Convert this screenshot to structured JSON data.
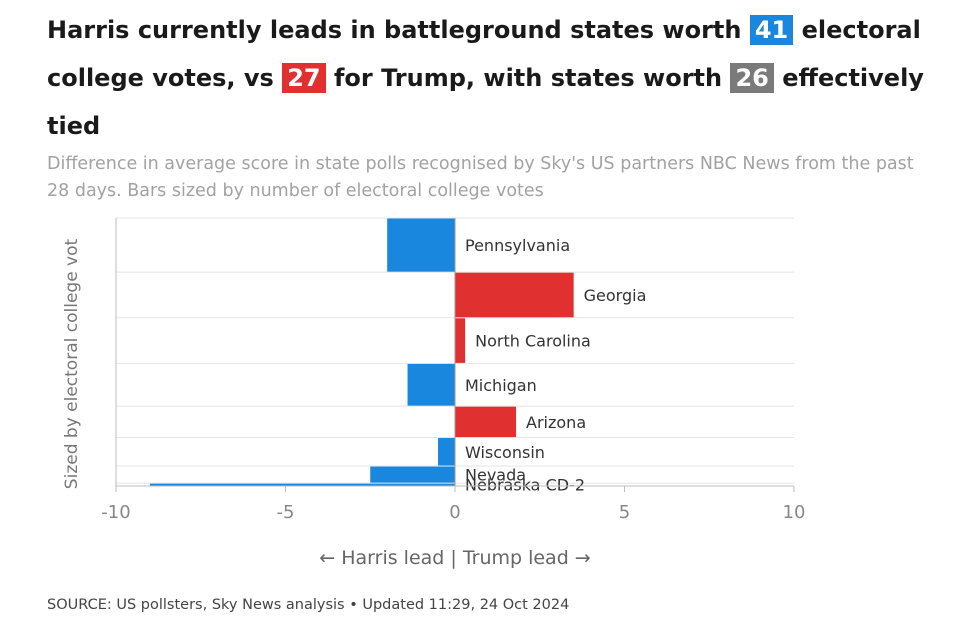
{
  "headline": {
    "part1": "Harris currently leads in battleground states worth",
    "harris_votes": "41",
    "part2": "electoral college votes, vs",
    "trump_votes": "27",
    "part3": "for Trump, with states worth",
    "tied_votes": "26",
    "part4": "effectively tied"
  },
  "subtitle": "Difference in average score in state polls recognised by Sky's US partners NBC News from the past 28 days. Bars sized by number of electoral college votes",
  "footer": {
    "source": "SOURCE: US pollsters, Sky News analysis • Updated 11:29, 24 Oct 2024"
  },
  "colors": {
    "harris": "#1a87de",
    "trump": "#e03030",
    "tied": "#7a7a7a"
  },
  "chart_data": {
    "type": "bar",
    "orientation": "horizontal",
    "title": "",
    "xlabel": "← Harris lead | Trump lead →",
    "ylabel": "Sized by electoral college vot",
    "xlim": [
      -10,
      10
    ],
    "xticks": [
      -10,
      -5,
      0,
      5,
      10
    ],
    "xtick_labels": [
      "-10",
      "-5",
      "0",
      "5",
      "10"
    ],
    "bar_width_encodes": "electoral college votes",
    "categories": [
      "Pennsylvania",
      "Georgia",
      "North Carolina",
      "Michigan",
      "Arizona",
      "Wisconsin",
      "Nevada",
      "Nebraska CD-2"
    ],
    "values": [
      -2.0,
      3.5,
      0.3,
      -1.4,
      1.8,
      -0.5,
      -2.5,
      -9.0
    ],
    "electoral_votes": [
      19,
      16,
      16,
      15,
      11,
      10,
      6,
      1
    ],
    "leader": [
      "harris",
      "trump",
      "trump",
      "harris",
      "trump",
      "harris",
      "harris",
      "harris"
    ]
  }
}
